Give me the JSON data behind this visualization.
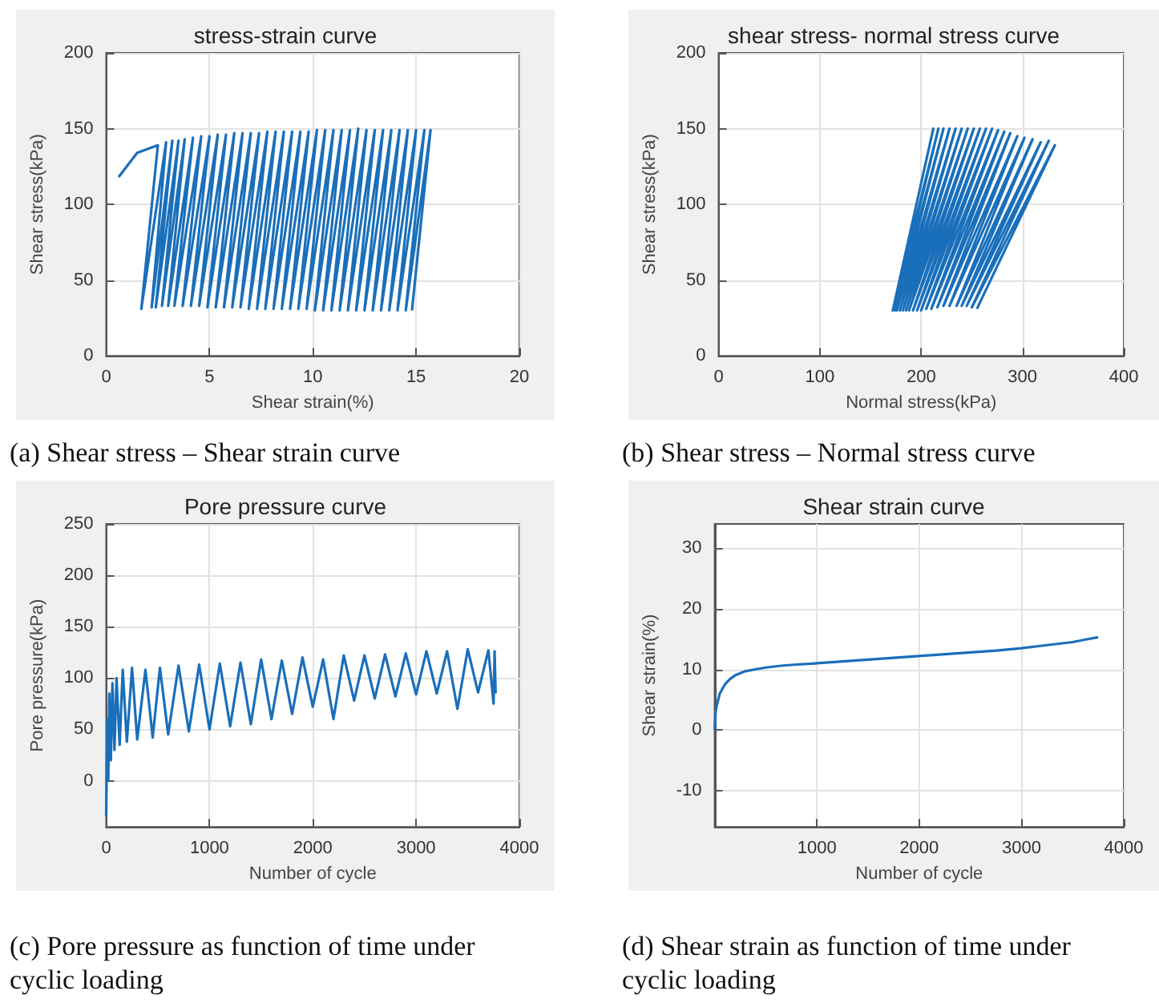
{
  "chart_data": [
    {
      "type": "line",
      "title": "stress-strain curve",
      "xlabel": "Shear strain(%)",
      "ylabel": "Shear stress(kPa)",
      "annotations": [
        "(a) Shear stress – Shear strain curve"
      ],
      "color": "#1a6fba",
      "grid": true,
      "xlim": [
        0,
        20
      ],
      "xticks": [
        0,
        5,
        10,
        15,
        20
      ],
      "ylim": [
        0,
        200
      ],
      "yticks": [
        0,
        50,
        100,
        150,
        200
      ],
      "x": [
        0.6,
        1.5,
        2.5,
        1.7,
        2.9,
        2.2,
        3.2,
        2.4,
        3.5,
        2.7,
        3.8,
        3.0,
        4.2,
        3.3,
        4.6,
        3.7,
        5.0,
        4.1,
        5.4,
        4.5,
        5.8,
        4.9,
        6.2,
        5.3,
        6.6,
        5.7,
        7.0,
        6.1,
        7.4,
        6.5,
        7.8,
        6.9,
        8.2,
        7.3,
        8.6,
        7.7,
        9.0,
        8.1,
        9.4,
        8.5,
        9.8,
        8.9,
        10.2,
        9.3,
        10.6,
        9.7,
        11.0,
        10.1,
        11.4,
        10.5,
        11.8,
        10.9,
        12.2,
        11.3,
        12.6,
        11.7,
        13.0,
        12.1,
        13.4,
        12.5,
        13.8,
        12.9,
        14.2,
        13.3,
        14.6,
        13.7,
        15.0,
        14.1,
        15.4,
        14.5,
        15.7,
        14.8
      ],
      "values": [
        118,
        134,
        139,
        31,
        141,
        32,
        142,
        32,
        142,
        33,
        143,
        33,
        144,
        33,
        145,
        33,
        145,
        33,
        146,
        33,
        146,
        32,
        147,
        32,
        147,
        32,
        147,
        32,
        147,
        32,
        148,
        31,
        148,
        31,
        148,
        31,
        148,
        31,
        148,
        31,
        148,
        31,
        149,
        31,
        149,
        31,
        149,
        30,
        149,
        30,
        149,
        30,
        150,
        30,
        149,
        30,
        149,
        30,
        149,
        30,
        149,
        30,
        149,
        30,
        149,
        30,
        149,
        30,
        149,
        30,
        149,
        30
      ]
    },
    {
      "type": "line",
      "title": "shear stress- normal stress curve",
      "xlabel": "Normal stress(kPa)",
      "ylabel": "Shear stress(kPa)",
      "annotations": [
        "(b) Shear stress – Normal stress curve"
      ],
      "color": "#1a6fba",
      "grid": true,
      "xlim": [
        0,
        400
      ],
      "xticks": [
        0,
        100,
        200,
        300,
        400
      ],
      "ylim": [
        0,
        200
      ],
      "yticks": [
        0,
        50,
        100,
        150,
        200
      ],
      "x": [
        255,
        332,
        250,
        326,
        245,
        318,
        240,
        310,
        235,
        302,
        228,
        295,
        222,
        288,
        216,
        282,
        210,
        276,
        205,
        270,
        200,
        264,
        196,
        258,
        192,
        252,
        188,
        246,
        185,
        240,
        182,
        234,
        179,
        228,
        176,
        222,
        174,
        217,
        172,
        212,
        172
      ],
      "values": [
        31,
        139,
        32,
        142,
        33,
        141,
        33,
        143,
        33,
        144,
        33,
        145,
        33,
        147,
        32,
        148,
        31,
        149,
        31,
        150,
        30,
        150,
        30,
        150,
        30,
        150,
        30,
        150,
        30,
        150,
        30,
        150,
        30,
        150,
        30,
        150,
        30,
        150,
        30,
        150,
        30
      ]
    },
    {
      "type": "line",
      "title": "Pore pressure curve",
      "xlabel": "Number of cycle",
      "ylabel": "Pore pressure(kPa)",
      "annotations": [
        "(c) Pore pressure as function of time under cyclic loading"
      ],
      "color": "#1a6fba",
      "grid": true,
      "xlim": [
        0,
        4000
      ],
      "xticks": [
        0,
        1000,
        2000,
        3000,
        4000
      ],
      "ylim": [
        -45,
        250
      ],
      "yticks": [
        0,
        50,
        100,
        150,
        200,
        250
      ],
      "x": [
        0,
        10,
        20,
        30,
        45,
        60,
        80,
        100,
        130,
        160,
        200,
        250,
        300,
        380,
        450,
        520,
        600,
        700,
        800,
        900,
        1000,
        1100,
        1200,
        1300,
        1400,
        1500,
        1600,
        1700,
        1800,
        1900,
        2000,
        2100,
        2200,
        2300,
        2400,
        2500,
        2600,
        2700,
        2800,
        2900,
        3000,
        3100,
        3200,
        3300,
        3400,
        3500,
        3600,
        3700,
        3750,
        3760,
        3770
      ],
      "values": [
        -35,
        60,
        0,
        85,
        20,
        95,
        30,
        100,
        35,
        108,
        38,
        110,
        40,
        108,
        42,
        110,
        45,
        112,
        48,
        113,
        50,
        114,
        53,
        115,
        55,
        118,
        60,
        117,
        65,
        120,
        72,
        118,
        60,
        122,
        78,
        122,
        80,
        123,
        82,
        124,
        84,
        126,
        85,
        126,
        70,
        128,
        86,
        127,
        75,
        126,
        85
      ]
    },
    {
      "type": "line",
      "title": "Shear strain curve",
      "xlabel": "Number of cycle",
      "ylabel": "Shear strain(%)",
      "annotations": [
        "(d) Shear strain as function of time under cyclic loading"
      ],
      "color": "#1a6fba",
      "grid": true,
      "xlim": [
        0,
        4000
      ],
      "xticks": [
        {
          "value": 0,
          "label": null
        },
        1000,
        2000,
        3000,
        4000
      ],
      "ylim": [
        -16,
        34
      ],
      "yticks": [
        -10,
        0,
        10,
        20,
        30
      ],
      "x": [
        0,
        10,
        20,
        50,
        100,
        150,
        200,
        300,
        400,
        500,
        650,
        800,
        1000,
        1250,
        1500,
        1750,
        2000,
        2250,
        2500,
        2750,
        3000,
        3250,
        3500,
        3650,
        3750
      ],
      "values": [
        0,
        3,
        4,
        6,
        7.5,
        8.4,
        9,
        9.7,
        10,
        10.3,
        10.6,
        10.8,
        11,
        11.3,
        11.6,
        11.9,
        12.2,
        12.5,
        12.8,
        13.1,
        13.5,
        14,
        14.5,
        15,
        15.3
      ]
    }
  ]
}
